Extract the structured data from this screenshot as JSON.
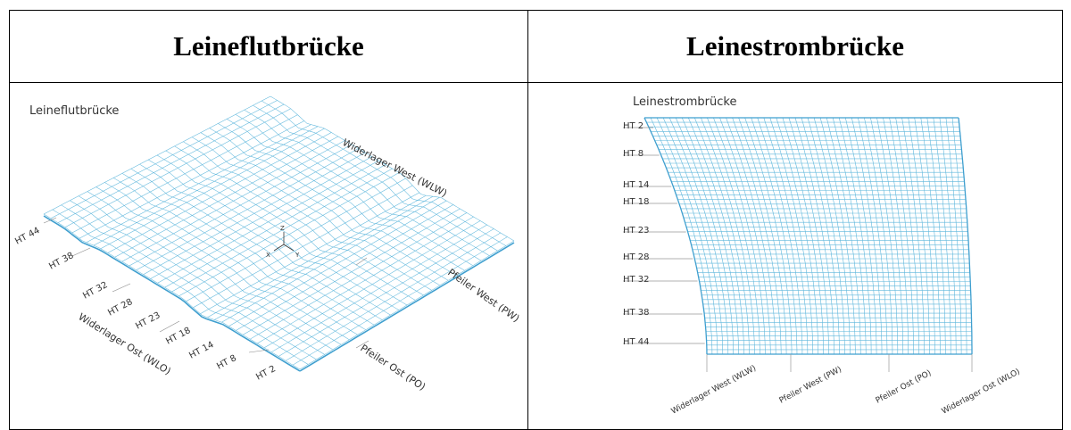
{
  "table": {
    "left_header": "Leineflutbrücke",
    "right_header": "Leinestrombrücke"
  },
  "left_figure": {
    "title": "Leineflutbrücke",
    "abutment_west": "Widerlager West (WLW)",
    "abutment_east": "Widerlager Ost (WLO)",
    "pier_west": "Pfeiler West (PW)",
    "pier_east": "Pfeiler Ost (PO)",
    "axis_z": "Z",
    "axis_x": "X",
    "axis_y": "Y",
    "ht_labels": [
      "HT 44",
      "HT 38",
      "HT 32",
      "HT 28",
      "HT 23",
      "HT 18",
      "HT 14",
      "HT 8",
      "HT 2"
    ]
  },
  "right_figure": {
    "title": "Leinestrombrücke",
    "ht_labels": [
      "HT 2",
      "HT 8",
      "HT 14",
      "HT 18",
      "HT 23",
      "HT 28",
      "HT 32",
      "HT 38",
      "HT 44"
    ],
    "bottom_labels": [
      "Widerlager West (WLW)",
      "Pfeiler West (PW)",
      "Pfeiler Ost (PO)",
      "Widerlager Ost (WLO)"
    ]
  },
  "colors": {
    "mesh": "#5fb7dc",
    "mesh_dark": "#3f9fcf",
    "text": "#333333"
  }
}
